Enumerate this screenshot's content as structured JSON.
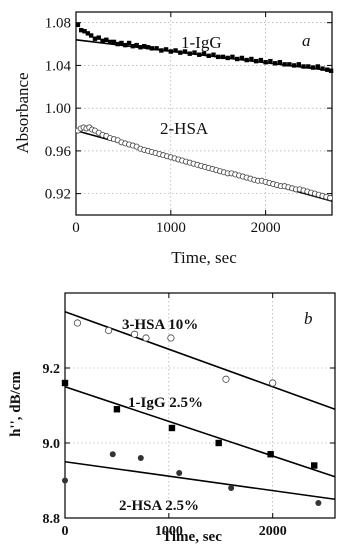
{
  "chart_data": [
    {
      "type": "scatter",
      "panel_label": "a",
      "xlabel": "Time, sec",
      "ylabel": "Absorbance",
      "xlim": [
        0,
        2700
      ],
      "ylim": [
        0.9,
        1.09
      ],
      "xticks": [
        0,
        1000,
        2000
      ],
      "xtick_labels": [
        "0",
        "1000",
        "2000"
      ],
      "yticks": [
        0.92,
        0.96,
        1.0,
        1.04,
        1.08
      ],
      "ytick_labels": [
        "0.92",
        "0.96",
        "1.00",
        "1.04",
        "1.08"
      ],
      "grid": true,
      "series": [
        {
          "name": "1-IgG",
          "marker": "filled-square",
          "x": [
            20,
            55,
            90,
            125,
            160,
            200,
            240,
            280,
            320,
            360,
            400,
            440,
            480,
            520,
            560,
            600,
            640,
            680,
            720,
            760,
            800,
            850,
            900,
            950,
            1000,
            1050,
            1100,
            1150,
            1200,
            1250,
            1300,
            1350,
            1400,
            1450,
            1500,
            1550,
            1600,
            1650,
            1700,
            1750,
            1800,
            1850,
            1900,
            1950,
            2000,
            2050,
            2100,
            2150,
            2200,
            2250,
            2300,
            2350,
            2400,
            2450,
            2500,
            2550,
            2600,
            2650,
            2690
          ],
          "y": [
            1.078,
            1.073,
            1.072,
            1.07,
            1.068,
            1.065,
            1.066,
            1.063,
            1.064,
            1.062,
            1.062,
            1.06,
            1.061,
            1.059,
            1.061,
            1.058,
            1.059,
            1.057,
            1.058,
            1.057,
            1.056,
            1.056,
            1.054,
            1.055,
            1.053,
            1.054,
            1.052,
            1.053,
            1.051,
            1.052,
            1.05,
            1.051,
            1.049,
            1.05,
            1.048,
            1.048,
            1.047,
            1.048,
            1.046,
            1.047,
            1.045,
            1.046,
            1.044,
            1.045,
            1.043,
            1.044,
            1.042,
            1.043,
            1.041,
            1.041,
            1.04,
            1.041,
            1.039,
            1.039,
            1.038,
            1.039,
            1.037,
            1.036,
            1.035
          ],
          "fit": {
            "x": [
              0,
              2700
            ],
            "y": [
              1.064,
              1.035
            ]
          }
        },
        {
          "name": "2-HSA",
          "marker": "open-circle",
          "x": [
            20,
            50,
            80,
            110,
            140,
            170,
            200,
            240,
            280,
            320,
            360,
            400,
            440,
            480,
            520,
            560,
            600,
            640,
            680,
            720,
            760,
            800,
            840,
            880,
            920,
            960,
            1000,
            1040,
            1080,
            1120,
            1160,
            1200,
            1240,
            1280,
            1320,
            1360,
            1400,
            1440,
            1480,
            1520,
            1560,
            1600,
            1640,
            1680,
            1720,
            1760,
            1800,
            1840,
            1880,
            1920,
            1960,
            2000,
            2040,
            2080,
            2120,
            2160,
            2200,
            2240,
            2280,
            2320,
            2360,
            2400,
            2440,
            2480,
            2520,
            2560,
            2600,
            2640,
            2680
          ],
          "y": [
            0.979,
            0.981,
            0.982,
            0.981,
            0.982,
            0.98,
            0.979,
            0.977,
            0.975,
            0.974,
            0.972,
            0.971,
            0.97,
            0.968,
            0.967,
            0.966,
            0.965,
            0.964,
            0.962,
            0.961,
            0.96,
            0.959,
            0.958,
            0.957,
            0.956,
            0.955,
            0.954,
            0.953,
            0.952,
            0.951,
            0.95,
            0.949,
            0.948,
            0.947,
            0.946,
            0.945,
            0.944,
            0.943,
            0.942,
            0.941,
            0.94,
            0.939,
            0.939,
            0.938,
            0.937,
            0.936,
            0.935,
            0.934,
            0.933,
            0.932,
            0.932,
            0.931,
            0.93,
            0.929,
            0.928,
            0.927,
            0.927,
            0.926,
            0.925,
            0.924,
            0.924,
            0.923,
            0.922,
            0.921,
            0.92,
            0.919,
            0.918,
            0.917,
            0.916
          ],
          "fit": {
            "x": [
              0,
              2700
            ],
            "y": [
              0.979,
              0.913
            ]
          }
        }
      ]
    },
    {
      "type": "scatter",
      "panel_label": "b",
      "xlabel": "Time, sec",
      "ylabel": "h'', dB/cm",
      "xlim": [
        0,
        2600
      ],
      "ylim": [
        8.8,
        9.4
      ],
      "xticks": [
        0,
        1000,
        2000
      ],
      "xtick_labels": [
        "0",
        "1000",
        "2000"
      ],
      "yticks": [
        8.8,
        9.0,
        9.2
      ],
      "ytick_labels": [
        "8.8",
        "9.0",
        "9.2"
      ],
      "grid": true,
      "series": [
        {
          "name": "3-HSA 10%",
          "marker": "open-circle",
          "x": [
            120,
            420,
            670,
            780,
            1020,
            1550,
            2000
          ],
          "y": [
            9.32,
            9.3,
            9.29,
            9.28,
            9.28,
            9.17,
            9.16
          ],
          "fit": {
            "x": [
              0,
              2600
            ],
            "y": [
              9.35,
              9.09
            ]
          }
        },
        {
          "name": "1-IgG 2.5%",
          "marker": "filled-square",
          "x": [
            0,
            500,
            1030,
            1480,
            1980,
            2400
          ],
          "y": [
            9.16,
            9.09,
            9.04,
            9.0,
            8.97,
            8.94
          ],
          "fit": {
            "x": [
              0,
              2600
            ],
            "y": [
              9.15,
              8.91
            ]
          }
        },
        {
          "name": "2-HSA 2.5%",
          "marker": "filled-circle",
          "x": [
            0,
            460,
            730,
            1100,
            1600,
            2440
          ],
          "y": [
            8.9,
            8.97,
            8.96,
            8.92,
            8.88,
            8.84
          ],
          "fit": {
            "x": [
              0,
              2600
            ],
            "y": [
              8.95,
              8.85
            ]
          }
        }
      ]
    }
  ]
}
